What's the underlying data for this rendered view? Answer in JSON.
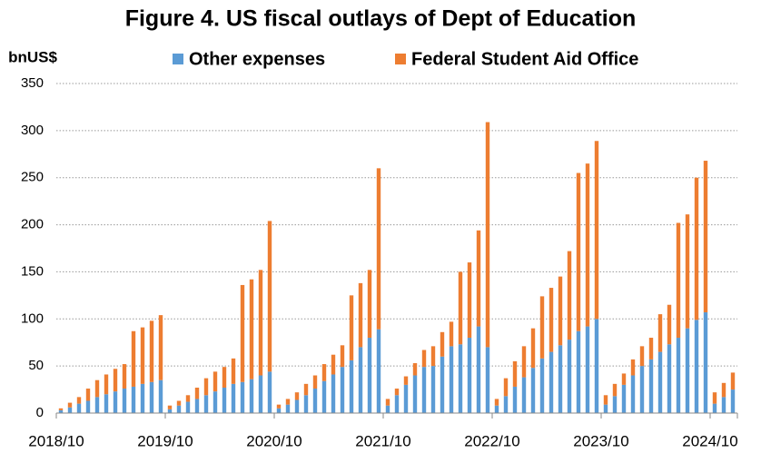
{
  "chart_data": {
    "type": "stacked_bar",
    "title": "Figure 4. US fiscal outlays of Dept of Education",
    "y_label": "bnUS$",
    "categories": [
      "2018/10",
      null,
      null,
      null,
      null,
      null,
      null,
      null,
      null,
      null,
      null,
      null,
      "2019/10",
      null,
      null,
      null,
      null,
      null,
      null,
      null,
      null,
      null,
      null,
      null,
      "2020/10",
      null,
      null,
      null,
      null,
      null,
      null,
      null,
      null,
      null,
      null,
      null,
      "2021/10",
      null,
      null,
      null,
      null,
      null,
      null,
      null,
      null,
      null,
      null,
      null,
      "2022/10",
      null,
      null,
      null,
      null,
      null,
      null,
      null,
      null,
      null,
      null,
      null,
      "2023/10",
      null,
      null,
      null,
      null,
      null,
      null,
      null,
      null,
      null,
      null,
      null,
      "2024/10",
      null,
      null
    ],
    "series": [
      {
        "name": "Other expenses",
        "color": "#5b9bd5",
        "values": [
          3,
          6,
          10,
          13,
          17,
          20,
          23,
          26,
          28,
          31,
          33,
          35,
          4,
          8,
          12,
          15,
          19,
          23,
          27,
          31,
          33,
          36,
          40,
          44,
          5,
          9,
          14,
          19,
          26,
          34,
          41,
          49,
          56,
          70,
          80,
          89,
          8,
          19,
          30,
          40,
          49,
          50,
          60,
          71,
          73,
          80,
          92,
          70,
          8,
          18,
          28,
          38,
          48,
          58,
          65,
          72,
          78,
          87,
          92,
          100,
          9,
          18,
          30,
          40,
          50,
          57,
          65,
          73,
          80,
          90,
          99,
          107,
          10,
          17,
          25
        ]
      },
      {
        "name": "Federal Student Aid Office",
        "color": "#ed7d31",
        "values": [
          2,
          5,
          7,
          13,
          18,
          21,
          24,
          26,
          59,
          60,
          65,
          69,
          4,
          5,
          7,
          12,
          18,
          21,
          22,
          27,
          103,
          106,
          112,
          160,
          4,
          6,
          8,
          12,
          14,
          18,
          21,
          23,
          69,
          68,
          72,
          171,
          7,
          7,
          9,
          13,
          18,
          21,
          26,
          26,
          77,
          80,
          102,
          239,
          7,
          19,
          27,
          33,
          42,
          66,
          68,
          73,
          94,
          168,
          173,
          189,
          10,
          13,
          12,
          17,
          21,
          23,
          40,
          42,
          122,
          121,
          151,
          161,
          12,
          15,
          18
        ]
      }
    ],
    "ylim": [
      0,
      350
    ],
    "yticks": [
      0,
      50,
      100,
      150,
      200,
      250,
      300,
      350
    ],
    "grid": true
  }
}
